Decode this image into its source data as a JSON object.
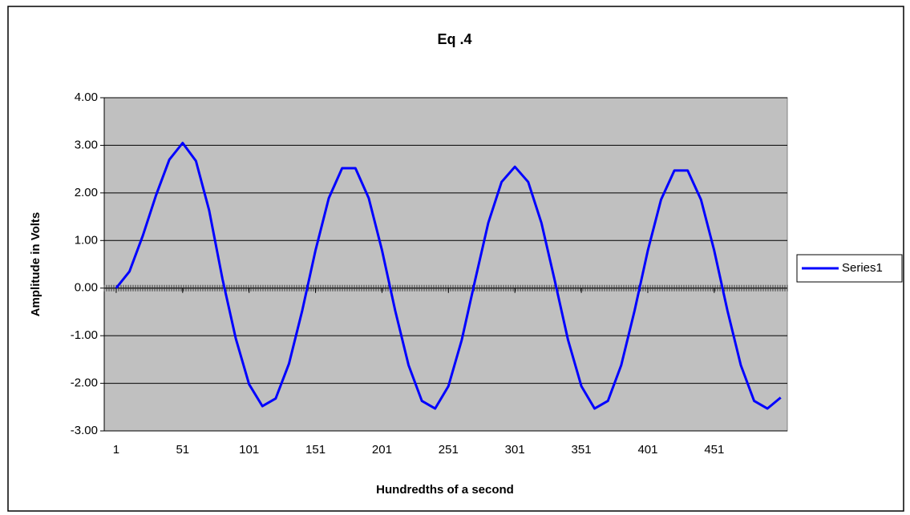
{
  "chart_data": {
    "type": "line",
    "title": "Eq .4",
    "x_label": "Hundredths of a second",
    "y_label": "Amplitude in Volts",
    "x": [
      1,
      11,
      21,
      31,
      41,
      51,
      61,
      71,
      81,
      91,
      101,
      111,
      121,
      131,
      141,
      151,
      161,
      171,
      181,
      191,
      201,
      211,
      221,
      231,
      241,
      251,
      261,
      271,
      281,
      291,
      301,
      311,
      321,
      331,
      341,
      351,
      361,
      371,
      381,
      391,
      401,
      411,
      421,
      431,
      441,
      451,
      461,
      471,
      481,
      491,
      501
    ],
    "series": [
      {
        "name": "Series1",
        "color": "#0000ff",
        "values": [
          0,
          0.35,
          1.1,
          1.95,
          2.7,
          3.05,
          2.67,
          1.63,
          0.19,
          -1.06,
          -2.02,
          -2.48,
          -2.32,
          -1.59,
          -0.47,
          0.8,
          1.89,
          2.52,
          2.52,
          1.89,
          0.8,
          -0.48,
          -1.62,
          -2.37,
          -2.53,
          -2.06,
          -1.09,
          0.16,
          1.37,
          2.23,
          2.55,
          2.23,
          1.37,
          0.16,
          -1.09,
          -2.06,
          -2.53,
          -2.37,
          -1.62,
          -0.48,
          0.79,
          1.86,
          2.47,
          2.47,
          1.86,
          0.79,
          -0.48,
          -1.62,
          -2.37,
          -2.53,
          -2.3
        ]
      }
    ],
    "xlim": [
      -8,
      506
    ],
    "xticks": [
      1,
      51,
      101,
      151,
      201,
      251,
      301,
      351,
      401,
      451
    ],
    "ylim": [
      -3,
      4
    ],
    "yticks": [
      {
        "value": -3,
        "label": "-3.00"
      },
      {
        "value": -2,
        "label": "-2.00"
      },
      {
        "value": -1,
        "label": "-1.00"
      },
      {
        "value": 0,
        "label": "0.00"
      },
      {
        "value": 1,
        "label": "1.00"
      },
      {
        "value": 2,
        "label": "2.00"
      },
      {
        "value": 3,
        "label": "3.00"
      },
      {
        "value": 4,
        "label": "4.00"
      }
    ],
    "grid": true,
    "legend": "right"
  }
}
